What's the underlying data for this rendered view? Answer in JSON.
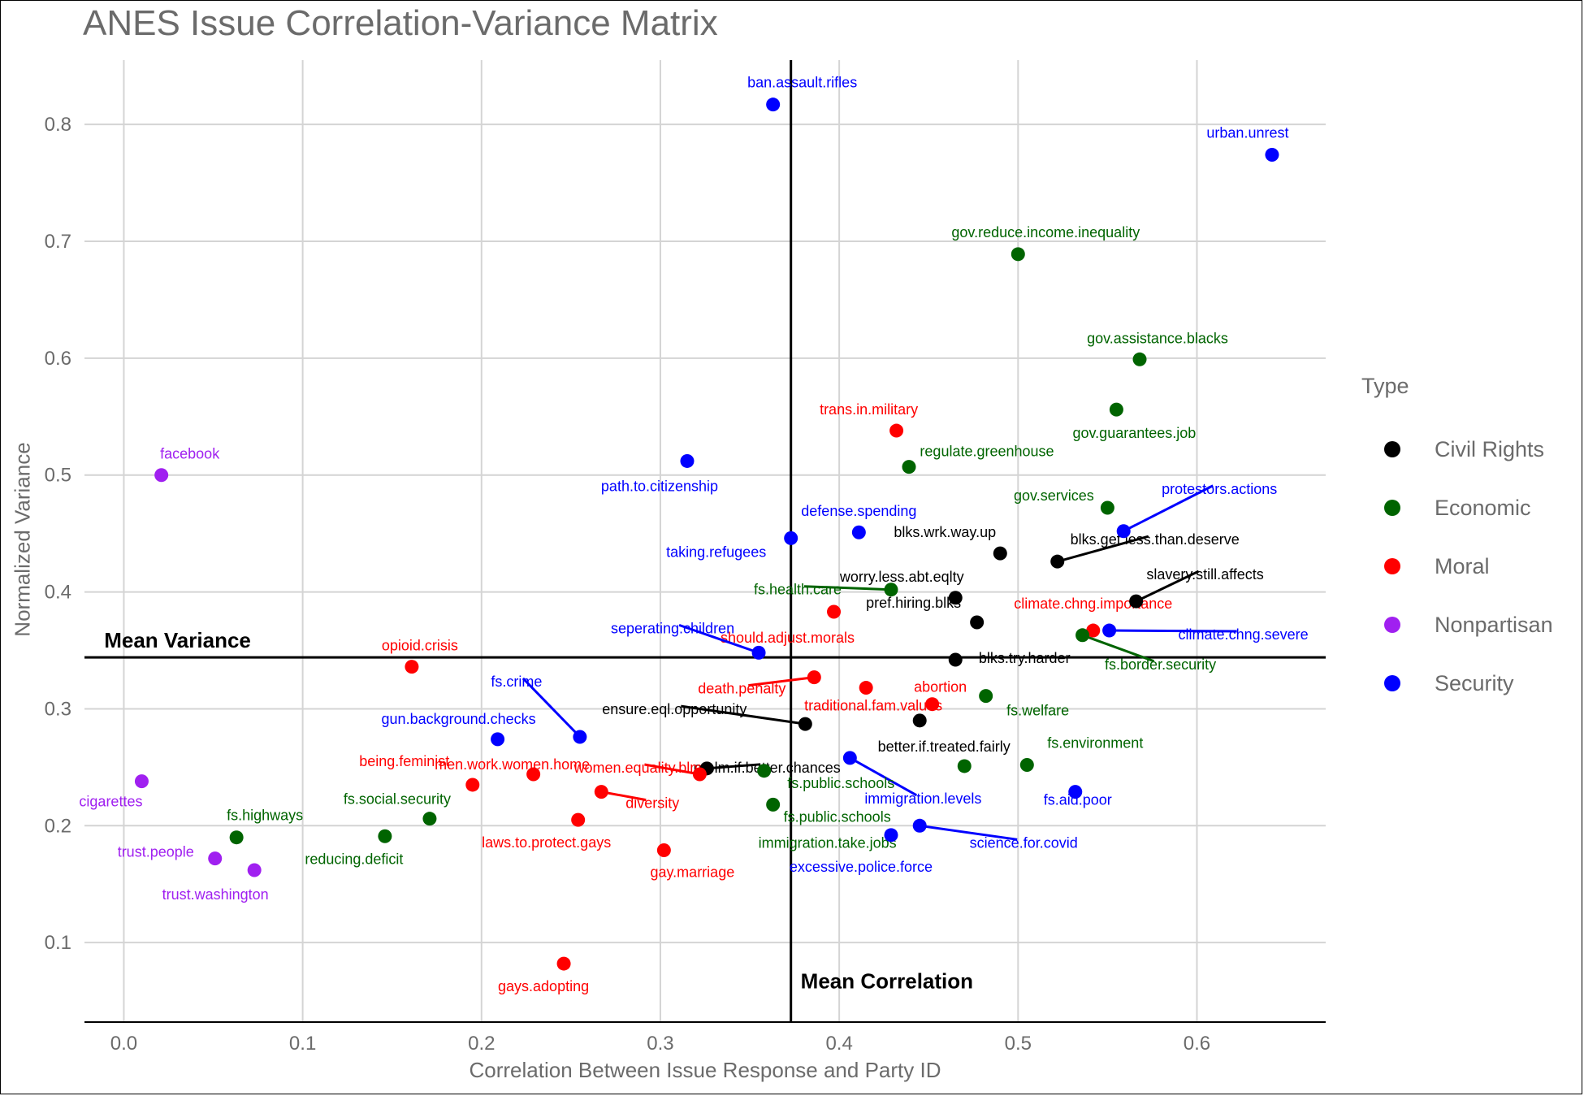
{
  "chart_data": {
    "type": "scatter",
    "title": "ANES Issue Correlation-Variance Matrix",
    "xlabel": "Correlation Between Issue Response and Party ID",
    "ylabel": "Normalized Variance",
    "xlim": [
      -0.022,
      0.672
    ],
    "ylim": [
      0.032,
      0.855
    ],
    "x_ticks": [
      0.0,
      0.1,
      0.2,
      0.3,
      0.4,
      0.5,
      0.6
    ],
    "x_tick_labels": [
      "0.0",
      "0.1",
      "0.2",
      "0.3",
      "0.4",
      "0.5",
      "0.6"
    ],
    "y_ticks": [
      0.1,
      0.2,
      0.3,
      0.4,
      0.5,
      0.6,
      0.7,
      0.8
    ],
    "y_tick_labels": [
      "0.1",
      "0.2",
      "0.3",
      "0.4",
      "0.5",
      "0.6",
      "0.7",
      "0.8"
    ],
    "grid": true,
    "legend_position": "right",
    "legend_title": "Type",
    "categories": [
      {
        "name": "Civil Rights",
        "color": "#000000"
      },
      {
        "name": "Economic",
        "color": "#006400"
      },
      {
        "name": "Moral",
        "color": "#ff0000"
      },
      {
        "name": "Nonpartisan",
        "color": "#a020f0"
      },
      {
        "name": "Security",
        "color": "#0000ff"
      }
    ],
    "reference_lines": [
      {
        "orientation": "vertical",
        "value": 0.373,
        "label": "Mean Correlation"
      },
      {
        "orientation": "horizontal",
        "value": 0.344,
        "label": "Mean Variance"
      }
    ],
    "points": [
      {
        "label": "ban.assault.rifles",
        "type": "Security",
        "x": 0.363,
        "y": 0.817
      },
      {
        "label": "urban.unrest",
        "type": "Security",
        "x": 0.642,
        "y": 0.774
      },
      {
        "label": "gov.reduce.income.inequality",
        "type": "Economic",
        "x": 0.5,
        "y": 0.689
      },
      {
        "label": "gov.assistance.blacks",
        "type": "Economic",
        "x": 0.568,
        "y": 0.599
      },
      {
        "label": "gov.guarantees.job",
        "type": "Economic",
        "x": 0.555,
        "y": 0.556
      },
      {
        "label": "trans.in.military",
        "type": "Moral",
        "x": 0.432,
        "y": 0.538
      },
      {
        "label": "regulate.greenhouse",
        "type": "Economic",
        "x": 0.439,
        "y": 0.507
      },
      {
        "label": "path.to.citizenship",
        "type": "Security",
        "x": 0.315,
        "y": 0.512
      },
      {
        "label": "facebook",
        "type": "Nonpartisan",
        "x": 0.021,
        "y": 0.5
      },
      {
        "label": "gov.services",
        "type": "Economic",
        "x": 0.55,
        "y": 0.472
      },
      {
        "label": "protestors.actions",
        "type": "Security",
        "x": 0.559,
        "y": 0.452
      },
      {
        "label": "defense.spending",
        "type": "Security",
        "x": 0.411,
        "y": 0.451
      },
      {
        "label": "taking.refugees",
        "type": "Security",
        "x": 0.373,
        "y": 0.446
      },
      {
        "label": "blks.wrk.way.up",
        "type": "Civil Rights",
        "x": 0.49,
        "y": 0.433
      },
      {
        "label": "blks.get.less.than.deserve",
        "type": "Civil Rights",
        "x": 0.522,
        "y": 0.426
      },
      {
        "label": "fs.health.care",
        "type": "Economic",
        "x": 0.429,
        "y": 0.402
      },
      {
        "label": "worry.less.abt.eqlty",
        "type": "Civil Rights",
        "x": 0.465,
        "y": 0.395
      },
      {
        "label": "slavery.still.affects",
        "type": "Civil Rights",
        "x": 0.566,
        "y": 0.392
      },
      {
        "label": "should.adjust.morals",
        "type": "Moral",
        "x": 0.397,
        "y": 0.383
      },
      {
        "label": "pref.hiring.blks",
        "type": "Civil Rights",
        "x": 0.477,
        "y": 0.374
      },
      {
        "label": "climate.chng.importance",
        "type": "Moral",
        "x": 0.542,
        "y": 0.367
      },
      {
        "label": "climate.chng.severe",
        "type": "Security",
        "x": 0.551,
        "y": 0.367
      },
      {
        "label": "fs.border.security",
        "type": "Economic",
        "x": 0.536,
        "y": 0.363
      },
      {
        "label": "seperating.children",
        "type": "Security",
        "x": 0.355,
        "y": 0.348
      },
      {
        "label": "blks.try.harder",
        "type": "Civil Rights",
        "x": 0.465,
        "y": 0.342
      },
      {
        "label": "opioid.crisis",
        "type": "Moral",
        "x": 0.161,
        "y": 0.336
      },
      {
        "label": "death.penalty",
        "type": "Moral",
        "x": 0.386,
        "y": 0.327
      },
      {
        "label": "traditional.fam.values",
        "type": "Moral",
        "x": 0.415,
        "y": 0.318
      },
      {
        "label": "fs.welfare",
        "type": "Economic",
        "x": 0.482,
        "y": 0.311
      },
      {
        "label": "abortion",
        "type": "Moral",
        "x": 0.452,
        "y": 0.304
      },
      {
        "label": "better.if.treated.fairly",
        "type": "Civil Rights",
        "x": 0.445,
        "y": 0.29
      },
      {
        "label": "ensure.eql.opportunity",
        "type": "Civil Rights",
        "x": 0.381,
        "y": 0.287
      },
      {
        "label": "fs.crime",
        "type": "Security",
        "x": 0.255,
        "y": 0.276
      },
      {
        "label": "gun.background.checks",
        "type": "Security",
        "x": 0.209,
        "y": 0.274
      },
      {
        "label": "immigration.levels",
        "type": "Security",
        "x": 0.406,
        "y": 0.258
      },
      {
        "label": "fs.environment",
        "type": "Economic",
        "x": 0.505,
        "y": 0.252
      },
      {
        "label": "fs.public.schools",
        "type": "Economic",
        "x": 0.47,
        "y": 0.251
      },
      {
        "label": "prblm.if.better.chances",
        "type": "Civil Rights",
        "x": 0.326,
        "y": 0.249
      },
      {
        "label": "immigration.take.jobs",
        "type": "Economic",
        "x": 0.358,
        "y": 0.247
      },
      {
        "label": "women.equality.blm",
        "type": "Moral",
        "x": 0.322,
        "y": 0.244
      },
      {
        "label": "men.work.women.home",
        "type": "Moral",
        "x": 0.229,
        "y": 0.244
      },
      {
        "label": "cigarettes",
        "type": "Nonpartisan",
        "x": 0.01,
        "y": 0.238
      },
      {
        "label": "being.feminist",
        "type": "Moral",
        "x": 0.195,
        "y": 0.235
      },
      {
        "label": "fs.aid.poor",
        "type": "Security",
        "x": 0.532,
        "y": 0.229
      },
      {
        "label": "diversity",
        "type": "Moral",
        "x": 0.267,
        "y": 0.229
      },
      {
        "label": "fs.public.schools",
        "type": "Economic",
        "x": 0.363,
        "y": 0.218
      },
      {
        "label": "fs.social.security",
        "type": "Economic",
        "x": 0.171,
        "y": 0.206
      },
      {
        "label": "laws.to.protect.gays",
        "type": "Moral",
        "x": 0.254,
        "y": 0.205
      },
      {
        "label": "science.for.covid",
        "type": "Security",
        "x": 0.445,
        "y": 0.2
      },
      {
        "label": "reducing.deficit",
        "type": "Economic",
        "x": 0.146,
        "y": 0.191
      },
      {
        "label": "excessive.police.force",
        "type": "Security",
        "x": 0.429,
        "y": 0.192
      },
      {
        "label": "fs.highways",
        "type": "Economic",
        "x": 0.063,
        "y": 0.19
      },
      {
        "label": "gay.marriage",
        "type": "Moral",
        "x": 0.302,
        "y": 0.179
      },
      {
        "label": "trust.people",
        "type": "Nonpartisan",
        "x": 0.051,
        "y": 0.172
      },
      {
        "label": "trust.washington",
        "type": "Nonpartisan",
        "x": 0.073,
        "y": 0.162
      },
      {
        "label": "gays.adopting",
        "type": "Moral",
        "x": 0.246,
        "y": 0.082
      }
    ]
  }
}
